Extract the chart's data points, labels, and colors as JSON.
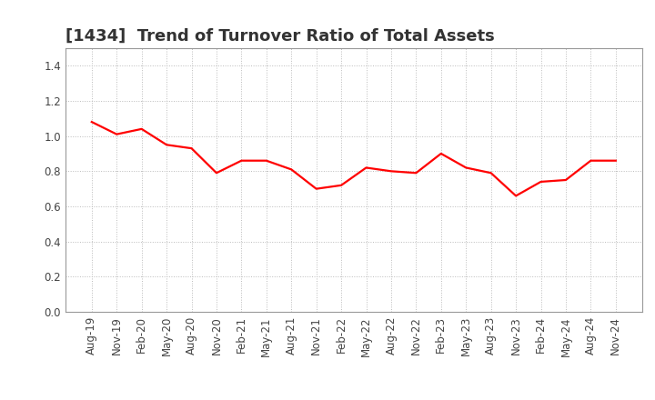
{
  "title": "[1434]  Trend of Turnover Ratio of Total Assets",
  "x_labels": [
    "Aug-19",
    "Nov-19",
    "Feb-20",
    "May-20",
    "Aug-20",
    "Nov-20",
    "Feb-21",
    "May-21",
    "Aug-21",
    "Nov-21",
    "Feb-22",
    "May-22",
    "Aug-22",
    "Nov-22",
    "Feb-23",
    "May-23",
    "Aug-23",
    "Nov-23",
    "Feb-24",
    "May-24",
    "Aug-24",
    "Nov-24"
  ],
  "y_values": [
    1.08,
    1.01,
    1.04,
    0.95,
    0.93,
    0.79,
    0.86,
    0.86,
    0.81,
    0.7,
    0.72,
    0.82,
    0.8,
    0.79,
    0.9,
    0.82,
    0.79,
    0.66,
    0.74,
    0.75,
    0.86,
    0.86
  ],
  "line_color": "#FF0000",
  "line_width": 1.6,
  "ylim": [
    0.0,
    1.5
  ],
  "yticks": [
    0.0,
    0.2,
    0.4,
    0.6,
    0.8,
    1.0,
    1.2,
    1.4
  ],
  "background_color": "#ffffff",
  "grid_color": "#bbbbbb",
  "title_fontsize": 13,
  "tick_fontsize": 8.5,
  "title_color": "#333333"
}
